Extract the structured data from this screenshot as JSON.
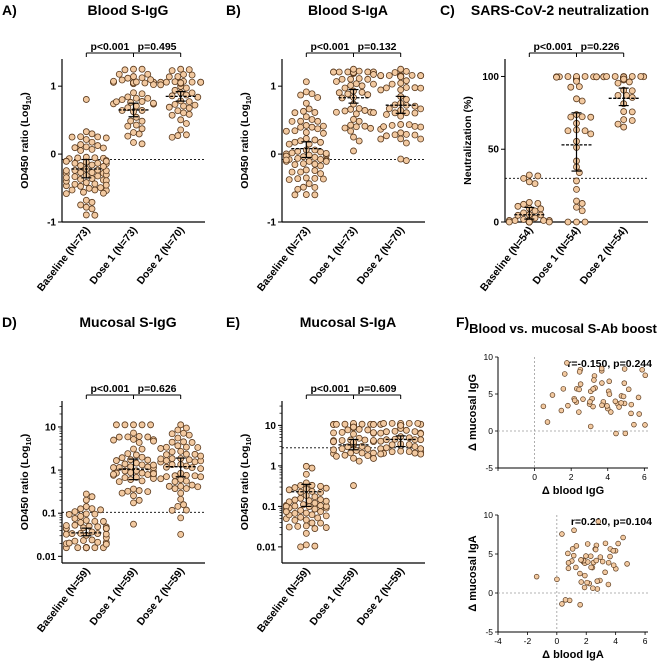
{
  "figure": {
    "panels": [
      {
        "id": "A",
        "letter": "A)",
        "title": "Blood S-IgG"
      },
      {
        "id": "B",
        "letter": "B)",
        "title": "Blood S-IgA"
      },
      {
        "id": "C",
        "letter": "C)",
        "title": "SARS-CoV-2 neutralization"
      },
      {
        "id": "D",
        "letter": "D)",
        "title": "Mucosal S-IgG"
      },
      {
        "id": "E",
        "letter": "E)",
        "title": "Mucosal S-IgA"
      },
      {
        "id": "F",
        "letter": "F)",
        "title": "Blood vs. mucosal S-Ab boost"
      }
    ]
  },
  "colors": {
    "point_fill": "#f2c9a0",
    "point_stroke": "#5a3a1e",
    "axis": "#000000",
    "ref_line": "#9a9a9a"
  },
  "chart_data": [
    {
      "id": "A",
      "type": "scatter",
      "title": "Blood S-IgG",
      "ylabel_main": "OD450 ratio (Log",
      "ylabel_sub": "10",
      "ylabel_end": ")",
      "scale": "linear",
      "ylim": [
        -1,
        1.4
      ],
      "ticks": [
        -1,
        0,
        1
      ],
      "tick_labels": [
        "-1",
        "0",
        "1"
      ],
      "categories": [
        "Baseline (N=73)",
        "Dose 1 (N=73)",
        "Dose 2 (N=70)"
      ],
      "n": [
        73,
        73,
        70
      ],
      "medians": [
        -0.22,
        0.65,
        0.85
      ],
      "ci": [
        [
          -0.35,
          -0.08
        ],
        [
          0.55,
          0.75
        ],
        [
          0.78,
          0.92
        ]
      ],
      "threshold": -0.08,
      "brackets": [
        {
          "from": 0,
          "to": 1,
          "label": "p<0.001"
        },
        {
          "from": 1,
          "to": 2,
          "label": "p=0.495"
        }
      ],
      "dist": [
        {
          "mode": "norm",
          "mean": -0.25,
          "sd": 0.38,
          "min": -0.9,
          "max": 0.95
        },
        {
          "mode": "ceil",
          "mean": 0.85,
          "sd": 0.35,
          "min": -0.9,
          "max": 1.25,
          "cap": 1.05,
          "capfrac": 0.4
        },
        {
          "mode": "ceil",
          "mean": 0.9,
          "sd": 0.3,
          "min": -0.9,
          "max": 1.25,
          "cap": 1.05,
          "capfrac": 0.45
        }
      ]
    },
    {
      "id": "B",
      "type": "scatter",
      "title": "Blood S-IgA",
      "ylabel_main": "OD450 ratio (Log",
      "ylabel_sub": "10",
      "ylabel_end": ")",
      "scale": "linear",
      "ylim": [
        -1,
        1.4
      ],
      "ticks": [
        -1,
        0,
        1
      ],
      "tick_labels": [
        "-1",
        "0",
        "1"
      ],
      "categories": [
        "Baseline (N=73)",
        "Dose 1 (N=73)",
        "Dose 2 (N=70)"
      ],
      "n": [
        73,
        73,
        70
      ],
      "medians": [
        0.08,
        0.83,
        0.72
      ],
      "ci": [
        [
          -0.05,
          0.18
        ],
        [
          0.75,
          0.95
        ],
        [
          0.6,
          0.85
        ]
      ],
      "threshold": -0.08,
      "brackets": [
        {
          "from": 0,
          "to": 1,
          "label": "p<0.001"
        },
        {
          "from": 1,
          "to": 2,
          "label": "p=0.132"
        }
      ],
      "dist": [
        {
          "mode": "norm",
          "mean": 0.05,
          "sd": 0.35,
          "min": -0.6,
          "max": 1.25
        },
        {
          "mode": "ceil",
          "mean": 0.8,
          "sd": 0.35,
          "min": -0.35,
          "max": 1.25,
          "cap": 1.2,
          "capfrac": 0.45
        },
        {
          "mode": "ceil",
          "mean": 0.7,
          "sd": 0.38,
          "min": -0.35,
          "max": 1.25,
          "cap": 1.15,
          "capfrac": 0.35
        }
      ]
    },
    {
      "id": "C",
      "type": "scatter",
      "title": "SARS-CoV-2 neutralization",
      "ylabel_main": "Neutralization (%)",
      "ylabel_sub": "",
      "ylabel_end": "",
      "scale": "linear",
      "ylim": [
        0,
        112
      ],
      "ticks": [
        0,
        50,
        100
      ],
      "tick_labels": [
        "0",
        "50",
        "100"
      ],
      "categories": [
        "Baseline (N=54)",
        "Dose 1 (N=54)",
        "Dose 2 (N=54)"
      ],
      "n": [
        54,
        54,
        54
      ],
      "medians": [
        5,
        53,
        85
      ],
      "ci": [
        [
          2,
          10
        ],
        [
          35,
          75
        ],
        [
          80,
          92
        ]
      ],
      "threshold": 30,
      "brackets": [
        {
          "from": 0,
          "to": 1,
          "label": "p<0.001"
        },
        {
          "from": 1,
          "to": 2,
          "label": "p=0.226"
        }
      ],
      "dist": [
        {
          "mode": "floor",
          "mean": 10,
          "sd": 25,
          "min": 0,
          "max": 100,
          "cap": 1,
          "capfrac": 0.45
        },
        {
          "mode": "ceil",
          "mean": 60,
          "sd": 35,
          "min": 0,
          "max": 100,
          "cap": 99,
          "capfrac": 0.45
        },
        {
          "mode": "ceil",
          "mean": 90,
          "sd": 15,
          "min": 17,
          "max": 100,
          "cap": 99,
          "capfrac": 0.6
        }
      ]
    },
    {
      "id": "D",
      "type": "scatter",
      "title": "Mucosal S-IgG",
      "ylabel_main": "OD450 ratio (Log",
      "ylabel_sub": "10",
      "ylabel_end": ")",
      "scale": "log",
      "ylim": [
        0.007,
        40
      ],
      "ticks": [
        0.01,
        0.1,
        1,
        10
      ],
      "tick_labels": [
        "0.01",
        "0.1",
        "1",
        "10"
      ],
      "categories": [
        "Baseline (N=59)",
        "Dose 1 (N=59)",
        "Dose 2 (N=59)"
      ],
      "n": [
        59,
        59,
        59
      ],
      "medians": [
        0.035,
        1.05,
        1.2
      ],
      "ci": [
        [
          0.03,
          0.045
        ],
        [
          0.6,
          1.8
        ],
        [
          0.7,
          1.9
        ]
      ],
      "threshold": 0.105,
      "brackets": [
        {
          "from": 0,
          "to": 1,
          "label": "p<0.001"
        },
        {
          "from": 1,
          "to": 2,
          "label": "p=0.626"
        }
      ],
      "dist": [
        {
          "mode": "norm",
          "mean": -1.4,
          "sd": 0.32,
          "min": -1.8,
          "max": 0.5
        },
        {
          "mode": "norm",
          "mean": 0.1,
          "sd": 0.55,
          "min": -1.3,
          "max": 1.05
        },
        {
          "mode": "norm",
          "mean": 0.1,
          "sd": 0.55,
          "min": -1.7,
          "max": 1.05
        }
      ]
    },
    {
      "id": "E",
      "type": "scatter",
      "title": "Mucosal S-IgA",
      "ylabel_main": "OD450 ratio (Log",
      "ylabel_sub": "10",
      "ylabel_end": ")",
      "scale": "log",
      "ylim": [
        0.004,
        40
      ],
      "ticks": [
        0.01,
        0.1,
        1,
        10
      ],
      "tick_labels": [
        "0.01",
        "0.1",
        "1",
        "10"
      ],
      "categories": [
        "Baseline (N=59)",
        "Dose 1 (N=59)",
        "Dose 2 (N=59)"
      ],
      "n": [
        59,
        59,
        59
      ],
      "medians": [
        0.23,
        3.3,
        4.5
      ],
      "ci": [
        [
          0.1,
          0.35
        ],
        [
          2.5,
          4.5
        ],
        [
          3.0,
          5.5
        ]
      ],
      "threshold": 2.8,
      "brackets": [
        {
          "from": 0,
          "to": 1,
          "label": "p<0.001"
        },
        {
          "from": 1,
          "to": 2,
          "label": "p=0.609"
        }
      ],
      "dist": [
        {
          "mode": "norm",
          "mean": -1.0,
          "sd": 0.45,
          "min": -2.0,
          "max": 1.35
        },
        {
          "mode": "ceil",
          "mean": 0.6,
          "sd": 0.3,
          "min": -2.2,
          "max": 1.05,
          "cap": 1.02,
          "capfrac": 0.3
        },
        {
          "mode": "ceil",
          "mean": 0.65,
          "sd": 0.3,
          "min": -0.5,
          "max": 1.05,
          "cap": 1.02,
          "capfrac": 0.35
        }
      ]
    },
    {
      "id": "F1",
      "type": "scatter_xy",
      "annotation": "r=-0.150, p=0.244",
      "xlabel": "Δ blood IgG",
      "ylabel": "Δ mucosal IgG",
      "xlim": [
        -2,
        6.2
      ],
      "ylim": [
        -5,
        10
      ],
      "xticks": [
        -2,
        0,
        2,
        4,
        6
      ],
      "xtick_labels": [
        "",
        "0",
        "2",
        "4",
        "6"
      ],
      "yticks": [
        -5,
        0,
        5,
        10
      ],
      "ytick_labels": [
        "-5",
        "0",
        "5",
        "10"
      ],
      "n": 59,
      "xmean": 3.5,
      "xsd": 1.2,
      "ymean": 5.0,
      "ysd": 2.2,
      "corr": -0.15
    },
    {
      "id": "F2",
      "type": "scatter_xy",
      "annotation": "r=0.210, p=0.104",
      "xlabel": "Δ blood IgA",
      "ylabel": "Δ mucosal IgA",
      "xlim": [
        -4,
        6.2
      ],
      "ylim": [
        -5,
        10
      ],
      "xticks": [
        -4,
        -2,
        0,
        2,
        4,
        6
      ],
      "xtick_labels": [
        "-4",
        "-2",
        "0",
        "2",
        "4",
        "6"
      ],
      "yticks": [
        -5,
        0,
        5,
        10
      ],
      "ytick_labels": [
        "-5",
        "0",
        "5",
        "10"
      ],
      "n": 59,
      "xmean": 2.2,
      "xsd": 1.3,
      "ymean": 4.0,
      "ysd": 2.6,
      "corr": 0.21
    }
  ]
}
